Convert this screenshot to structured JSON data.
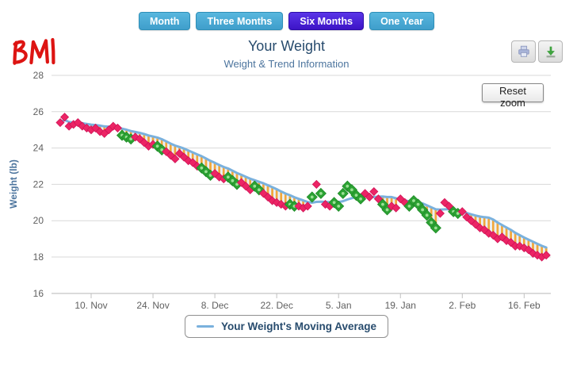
{
  "logo_text": "BMI",
  "toolbar": {
    "buttons": [
      {
        "label": "Month",
        "active": false
      },
      {
        "label": "Three Months",
        "active": false
      },
      {
        "label": "Six Months",
        "active": true
      },
      {
        "label": "One Year",
        "active": false
      }
    ],
    "active_color": "#4a22d6",
    "inactive_color": "#4baad2"
  },
  "header": {
    "title": "Your Weight",
    "subtitle": "Weight & Trend Information"
  },
  "export_buttons": [
    {
      "name": "print-chart",
      "icon": "printer-icon"
    },
    {
      "name": "download-chart",
      "icon": "download-icon"
    }
  ],
  "reset_zoom_label": "Reset zoom",
  "legend": {
    "label": "Your Weight's Moving Average"
  },
  "chart_data": {
    "type": "scatter",
    "title": "Your Weight",
    "subtitle": "Weight & Trend Information",
    "xlabel": "",
    "ylabel": "Weight (lb)",
    "ylim": [
      16,
      28
    ],
    "y_ticks": [
      16,
      18,
      20,
      22,
      24,
      26,
      28
    ],
    "x_day_range": [
      -2,
      111
    ],
    "x_ticks": [
      {
        "day": 7,
        "label": "10. Nov"
      },
      {
        "day": 21,
        "label": "24. Nov"
      },
      {
        "day": 35,
        "label": "8. Dec"
      },
      {
        "day": 49,
        "label": "22. Dec"
      },
      {
        "day": 63,
        "label": "5. Jan"
      },
      {
        "day": 77,
        "label": "19. Jan"
      },
      {
        "day": 91,
        "label": "2. Feb"
      },
      {
        "day": 105,
        "label": "16. Feb"
      }
    ],
    "grid": true,
    "legend_position": "bottom",
    "series": [
      {
        "name": "Your Weight",
        "type": "scatter",
        "marker": "diamond",
        "in_legend": false,
        "point_format": "[day_index (0 = 3 Nov), weight_lb, 'g' if green marker else pink]",
        "points": [
          [
            0,
            25.4
          ],
          [
            1,
            25.7
          ],
          [
            2,
            25.2
          ],
          [
            3,
            25.3
          ],
          [
            4,
            25.4
          ],
          [
            5,
            25.2
          ],
          [
            6,
            25.1
          ],
          [
            7,
            25.0
          ],
          [
            8,
            25.1
          ],
          [
            9,
            24.9
          ],
          [
            10,
            24.8
          ],
          [
            11,
            25.0
          ],
          [
            12,
            25.2
          ],
          [
            13,
            25.1
          ],
          [
            14,
            24.7,
            "g"
          ],
          [
            15,
            24.6,
            "g"
          ],
          [
            16,
            24.5,
            "g"
          ],
          [
            17,
            24.6
          ],
          [
            18,
            24.5
          ],
          [
            19,
            24.3
          ],
          [
            20,
            24.1
          ],
          [
            21,
            24.2
          ],
          [
            22,
            24.1,
            "g"
          ],
          [
            23,
            23.9,
            "g"
          ],
          [
            24,
            23.8
          ],
          [
            25,
            23.6
          ],
          [
            26,
            23.4
          ],
          [
            27,
            23.7
          ],
          [
            28,
            23.5
          ],
          [
            29,
            23.3
          ],
          [
            30,
            23.2
          ],
          [
            31,
            23.0
          ],
          [
            32,
            22.9,
            "g"
          ],
          [
            33,
            22.7,
            "g"
          ],
          [
            34,
            22.5,
            "g"
          ],
          [
            35,
            22.6
          ],
          [
            36,
            22.4
          ],
          [
            37,
            22.3
          ],
          [
            38,
            22.4,
            "g"
          ],
          [
            39,
            22.2,
            "g"
          ],
          [
            40,
            22.0,
            "g"
          ],
          [
            41,
            22.1
          ],
          [
            42,
            21.9
          ],
          [
            43,
            21.7
          ],
          [
            44,
            21.9,
            "g"
          ],
          [
            45,
            21.7,
            "g"
          ],
          [
            46,
            21.5
          ],
          [
            47,
            21.3
          ],
          [
            48,
            21.1
          ],
          [
            49,
            21.0
          ],
          [
            50,
            20.9
          ],
          [
            51,
            20.8
          ],
          [
            52,
            20.9,
            "g"
          ],
          [
            53,
            20.8,
            "g"
          ],
          [
            54,
            20.8
          ],
          [
            55,
            20.7
          ],
          [
            56,
            20.8
          ],
          [
            57,
            21.3,
            "g"
          ],
          [
            58,
            22.0
          ],
          [
            59,
            21.5,
            "g"
          ],
          [
            60,
            20.9
          ],
          [
            61,
            20.8
          ],
          [
            62,
            21.0,
            "g"
          ],
          [
            63,
            20.8,
            "g"
          ],
          [
            64,
            21.5,
            "g"
          ],
          [
            65,
            21.9,
            "g"
          ],
          [
            66,
            21.7,
            "g"
          ],
          [
            67,
            21.4,
            "g"
          ],
          [
            68,
            21.2,
            "g"
          ],
          [
            69,
            21.5
          ],
          [
            70,
            21.3
          ],
          [
            71,
            21.6
          ],
          [
            72,
            21.2
          ],
          [
            73,
            20.9,
            "g"
          ],
          [
            74,
            20.6,
            "g"
          ],
          [
            75,
            20.8
          ],
          [
            76,
            20.7
          ],
          [
            77,
            21.2
          ],
          [
            78,
            21.0
          ],
          [
            79,
            20.8,
            "g"
          ],
          [
            80,
            21.1,
            "g"
          ],
          [
            81,
            20.9,
            "g"
          ],
          [
            82,
            20.6,
            "g"
          ],
          [
            83,
            20.3,
            "g"
          ],
          [
            84,
            19.9,
            "g"
          ],
          [
            85,
            19.6,
            "g"
          ],
          [
            86,
            20.4
          ],
          [
            87,
            21.0
          ],
          [
            88,
            20.8
          ],
          [
            89,
            20.5,
            "g"
          ],
          [
            90,
            20.4,
            "g"
          ],
          [
            91,
            20.5
          ],
          [
            92,
            20.2
          ],
          [
            93,
            20.0
          ],
          [
            94,
            19.8
          ],
          [
            95,
            19.6
          ],
          [
            96,
            19.5
          ],
          [
            97,
            19.3
          ],
          [
            98,
            19.2
          ],
          [
            99,
            19.0
          ],
          [
            100,
            19.1
          ],
          [
            101,
            18.9
          ],
          [
            102,
            18.8
          ],
          [
            103,
            18.6
          ],
          [
            104,
            18.6
          ],
          [
            105,
            18.5
          ],
          [
            106,
            18.4
          ],
          [
            107,
            18.2
          ],
          [
            108,
            18.1
          ],
          [
            109,
            18.0
          ],
          [
            110,
            18.1
          ]
        ]
      },
      {
        "name": "Your Weight's Moving Average",
        "type": "line",
        "in_legend": true,
        "color": "#7ab1dd",
        "derivation": "trailing mean of Your Weight, window 12 days"
      }
    ],
    "fill_between": {
      "style": "vertical-hatch",
      "between": [
        "Your Weight",
        "Your Weight's Moving Average"
      ],
      "when": "moving average above weight",
      "hatch_color": "#f0a73c",
      "hatch_alt_color": "#e9eff5"
    },
    "colors": {
      "point_pink": "#ec2465",
      "point_green": "#2ca233",
      "point_green_center": "#9be095",
      "ma_line": "#7ab1dd",
      "grid": "#d8d8d8",
      "axis_line": "#c0c0c0",
      "tick_label": "#606060",
      "axis_title": "#4d759e"
    }
  }
}
